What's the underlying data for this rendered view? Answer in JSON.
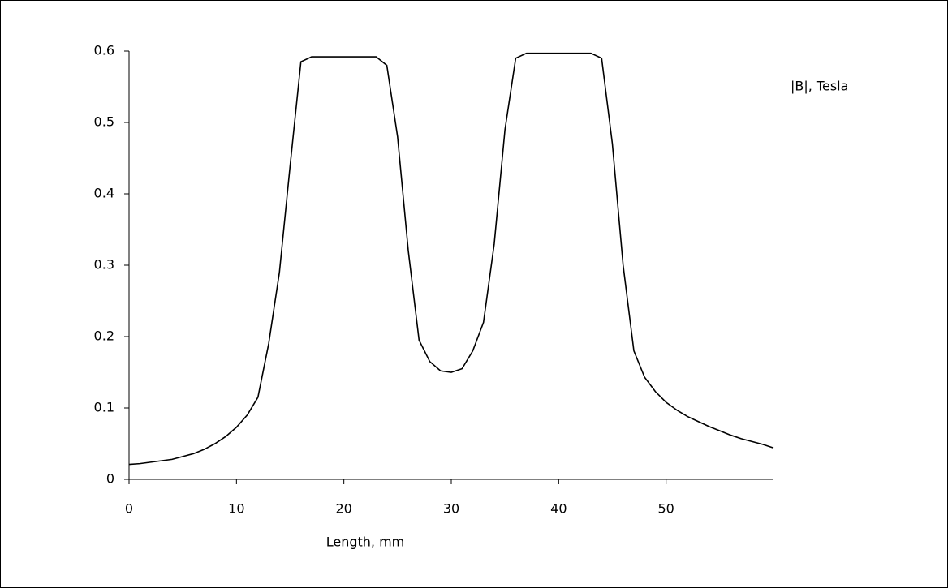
{
  "chart_data": {
    "type": "line",
    "x_label": "Length, mm",
    "x": [
      0,
      1,
      2,
      3,
      4,
      5,
      6,
      7,
      8,
      9,
      10,
      11,
      12,
      13,
      14,
      15,
      16,
      17,
      18,
      19,
      20,
      21,
      22,
      23,
      24,
      25,
      26,
      27,
      28,
      29,
      30,
      31,
      32,
      33,
      34,
      35,
      36,
      37,
      38,
      39,
      40,
      41,
      42,
      43,
      44,
      45,
      46,
      47,
      48,
      49,
      50,
      51,
      52,
      53,
      54,
      55,
      56,
      57,
      58,
      59,
      60
    ],
    "series": [
      {
        "name": "|B|, Tesla",
        "color": "#000000",
        "values": [
          0.021,
          0.022,
          0.024,
          0.026,
          0.028,
          0.032,
          0.036,
          0.042,
          0.05,
          0.06,
          0.073,
          0.09,
          0.115,
          0.19,
          0.29,
          0.44,
          0.585,
          0.592,
          0.592,
          0.592,
          0.592,
          0.592,
          0.592,
          0.592,
          0.58,
          0.48,
          0.32,
          0.195,
          0.165,
          0.152,
          0.15,
          0.155,
          0.18,
          0.22,
          0.33,
          0.49,
          0.59,
          0.597,
          0.597,
          0.597,
          0.597,
          0.597,
          0.597,
          0.597,
          0.59,
          0.47,
          0.3,
          0.18,
          0.143,
          0.123,
          0.108,
          0.097,
          0.088,
          0.081,
          0.074,
          0.068,
          0.062,
          0.057,
          0.053,
          0.049,
          0.044
        ]
      }
    ],
    "xlim": [
      0,
      60
    ],
    "xticks": [
      0,
      10,
      20,
      30,
      40,
      50
    ],
    "ylim": [
      0,
      0.6
    ],
    "yticks": [
      0,
      0.1,
      0.2,
      0.3,
      0.4,
      0.5,
      0.6
    ],
    "grid": false
  }
}
